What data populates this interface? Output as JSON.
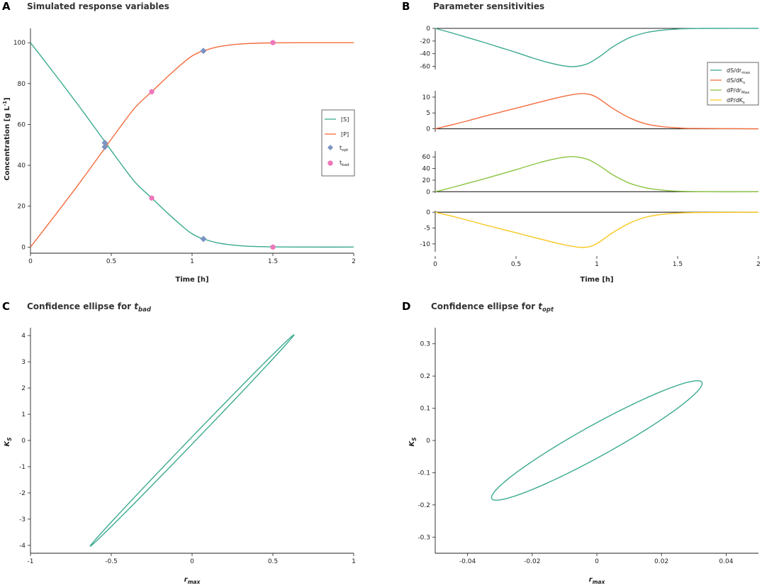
{
  "colors": {
    "S": "#3aaa8f",
    "P": "#f36c3d",
    "dSdrmax": "#3aaa8f",
    "dSdKs": "#f36c3d",
    "dPdrmax": "#8ac43f",
    "dPdKs": "#f7c71c",
    "topt_marker": "#7b93c3",
    "tbad_marker": "#ee77bb"
  },
  "chart_data": [
    {
      "id": "A",
      "panel_label": "A",
      "type": "line",
      "title": "Simulated response variables",
      "xlabel": "Time [h]",
      "ylabel_main": "Concentration [g L",
      "ylabel_sup": "-1",
      "ylabel_close": "]",
      "xlim": [
        0,
        2
      ],
      "ylim": [
        -3,
        107
      ],
      "xticks": [
        "0",
        "0.5",
        "1",
        "1.5",
        "2"
      ],
      "yticks": [
        "0",
        "20",
        "40",
        "60",
        "80",
        "100"
      ],
      "series": [
        {
          "name": "[S]",
          "color_key": "S",
          "x": [
            0,
            0.1,
            0.2,
            0.3,
            0.4,
            0.47,
            0.55,
            0.65,
            0.75,
            0.85,
            0.95,
            1.0,
            1.05,
            1.07,
            1.15,
            1.25,
            1.35,
            1.5,
            1.75,
            2.0
          ],
          "y": [
            100,
            89.8,
            79.5,
            69.0,
            58.2,
            50.5,
            41.8,
            31.5,
            24.0,
            16.5,
            9.5,
            6.5,
            4.5,
            4.0,
            2.2,
            1.0,
            0.4,
            0.1,
            0,
            0
          ]
        },
        {
          "name": "[P]",
          "color_key": "P",
          "x": [
            0,
            0.1,
            0.2,
            0.3,
            0.4,
            0.47,
            0.55,
            0.65,
            0.75,
            0.85,
            0.95,
            1.0,
            1.05,
            1.07,
            1.15,
            1.25,
            1.35,
            1.5,
            1.75,
            2.0
          ],
          "y": [
            0,
            10.2,
            20.5,
            31.0,
            41.8,
            49.5,
            58.2,
            68.5,
            76.0,
            83.5,
            90.5,
            93.5,
            95.5,
            96.0,
            97.8,
            99.0,
            99.6,
            99.9,
            100,
            100
          ]
        }
      ],
      "markers": [
        {
          "name": "topt",
          "shape": "diamond",
          "color_key": "topt_marker",
          "points": [
            [
              0.46,
              51
            ],
            [
              0.46,
              49
            ],
            [
              1.07,
              96
            ],
            [
              1.07,
              4
            ]
          ]
        },
        {
          "name": "tbad",
          "shape": "hexagon",
          "color_key": "tbad_marker",
          "points": [
            [
              0.75,
              76
            ],
            [
              0.75,
              24
            ],
            [
              1.5,
              100
            ],
            [
              1.5,
              0
            ]
          ]
        }
      ],
      "legend": [
        {
          "text": "[S]",
          "kind": "line",
          "color_key": "S"
        },
        {
          "text": "[P]",
          "kind": "line",
          "color_key": "P"
        },
        {
          "text": "t",
          "sub": "opt",
          "kind": "diamond",
          "color_key": "topt_marker"
        },
        {
          "text": "t",
          "sub": "bad",
          "kind": "hexagon",
          "color_key": "tbad_marker"
        }
      ]
    },
    {
      "id": "B",
      "panel_label": "B",
      "type": "line",
      "title": "Parameter sensitivities",
      "xlabel": "Time [h]",
      "xlim": [
        0,
        2
      ],
      "xticks": [
        "0",
        "0.5",
        "1",
        "1.5",
        "2"
      ],
      "subplots": [
        {
          "name": "dS/drmax",
          "color_key": "dSdrmax",
          "ylim": [
            -65,
            0
          ],
          "yticks": [
            0,
            -20,
            -40,
            -60
          ],
          "x": [
            0,
            0.1,
            0.2,
            0.3,
            0.4,
            0.5,
            0.6,
            0.7,
            0.8,
            0.85,
            0.9,
            0.95,
            1.0,
            1.05,
            1.1,
            1.2,
            1.3,
            1.4,
            1.5,
            1.6,
            1.7,
            2.0
          ],
          "y": [
            0,
            -7,
            -14.5,
            -22,
            -30,
            -38,
            -46.5,
            -54,
            -59.5,
            -60.5,
            -59,
            -55,
            -47.5,
            -38.5,
            -29,
            -15,
            -7,
            -3,
            -1,
            -0.3,
            0,
            0
          ]
        },
        {
          "name": "dS/dKs",
          "color_key": "dSdKs",
          "ylim": [
            -1,
            12
          ],
          "yticks": [
            10,
            5,
            0
          ],
          "x": [
            0,
            0.1,
            0.2,
            0.3,
            0.4,
            0.5,
            0.6,
            0.7,
            0.8,
            0.88,
            0.92,
            0.96,
            1.0,
            1.05,
            1.1,
            1.2,
            1.3,
            1.4,
            1.5,
            1.6,
            2.0
          ],
          "y": [
            0,
            1.2,
            2.5,
            3.9,
            5.2,
            6.5,
            7.8,
            9.1,
            10.3,
            11.0,
            11.1,
            10.8,
            9.9,
            8.2,
            6.4,
            3.5,
            1.6,
            0.7,
            0.3,
            0.1,
            0
          ]
        },
        {
          "name": "dP/drMax",
          "color_key": "dPdrmax",
          "ylim": [
            -2,
            70
          ],
          "yticks": [
            60,
            40,
            20,
            0
          ],
          "x": [
            0,
            0.1,
            0.2,
            0.3,
            0.4,
            0.5,
            0.6,
            0.7,
            0.8,
            0.85,
            0.9,
            0.95,
            1.0,
            1.05,
            1.1,
            1.2,
            1.3,
            1.4,
            1.5,
            1.6,
            1.7,
            2.0
          ],
          "y": [
            0,
            7,
            14.5,
            22,
            30,
            38,
            46.5,
            54,
            59.5,
            60.5,
            59,
            55,
            47.5,
            38.5,
            29,
            15,
            7,
            3,
            1,
            0.3,
            0,
            0
          ]
        },
        {
          "name": "dP/dKs",
          "color_key": "dPdKs",
          "ylim": [
            -12.5,
            0.5
          ],
          "yticks": [
            0,
            -5,
            -10
          ],
          "x": [
            0,
            0.1,
            0.2,
            0.3,
            0.4,
            0.5,
            0.6,
            0.7,
            0.8,
            0.88,
            0.92,
            0.96,
            1.0,
            1.05,
            1.1,
            1.2,
            1.3,
            1.4,
            1.5,
            1.6,
            2.0
          ],
          "y": [
            0,
            -1.2,
            -2.5,
            -3.9,
            -5.2,
            -6.5,
            -7.8,
            -9.1,
            -10.3,
            -11.0,
            -11.1,
            -10.8,
            -9.9,
            -8.2,
            -6.4,
            -3.5,
            -1.6,
            -0.7,
            -0.3,
            -0.1,
            0
          ]
        }
      ],
      "legend": [
        {
          "text": "dS/dr",
          "sub": "max",
          "color_key": "dSdrmax"
        },
        {
          "text": "dS/dK",
          "sub": "s",
          "color_key": "dSdKs"
        },
        {
          "text": "dP/dr",
          "sub": "Max",
          "color_key": "dPdrmax"
        },
        {
          "text": "dP/dK",
          "sub": "s",
          "color_key": "dPdKs"
        }
      ]
    },
    {
      "id": "C",
      "panel_label": "C",
      "type": "line",
      "title_main": "Confidence ellipse for ",
      "title_t": "t",
      "title_sub": "bad",
      "xlabel_main": "r",
      "xlabel_sub": "max",
      "ylabel_main": "K",
      "ylabel_sub": "S",
      "xlim": [
        -1,
        1
      ],
      "ylim": [
        -4.3,
        4.3
      ],
      "xticks": [
        "-1",
        "-0.5",
        "0",
        "0.5",
        "1"
      ],
      "yticks": [
        "-4",
        "-3",
        "-2",
        "-1",
        "0",
        "1",
        "2",
        "3",
        "4"
      ],
      "ellipse": {
        "color_key": "S",
        "a_deg_axis": [
          0.63,
          4.03
        ],
        "b_axis": [
          -0.013,
          0.055
        ]
      }
    },
    {
      "id": "D",
      "panel_label": "D",
      "type": "line",
      "title_main": "Confidence ellipse for ",
      "title_t": "t",
      "title_sub": "opt",
      "xlabel_main": "r",
      "xlabel_sub": "max",
      "ylabel_main": "K",
      "ylabel_sub": "S",
      "xlim": [
        -0.05,
        0.05
      ],
      "ylim": [
        -0.35,
        0.35
      ],
      "xticks": [
        "-0.04",
        "-0.02",
        "0",
        "0.02",
        "0.04"
      ],
      "yticks": [
        "-0.3",
        "-0.2",
        "-0.1",
        "0",
        "0.1",
        "0.2",
        "0.3"
      ],
      "ellipse": {
        "color_key": "S",
        "a_deg_axis": [
          0.0325,
          0.1805
        ],
        "b_axis": [
          -0.00235,
          0.04237
        ]
      }
    }
  ]
}
